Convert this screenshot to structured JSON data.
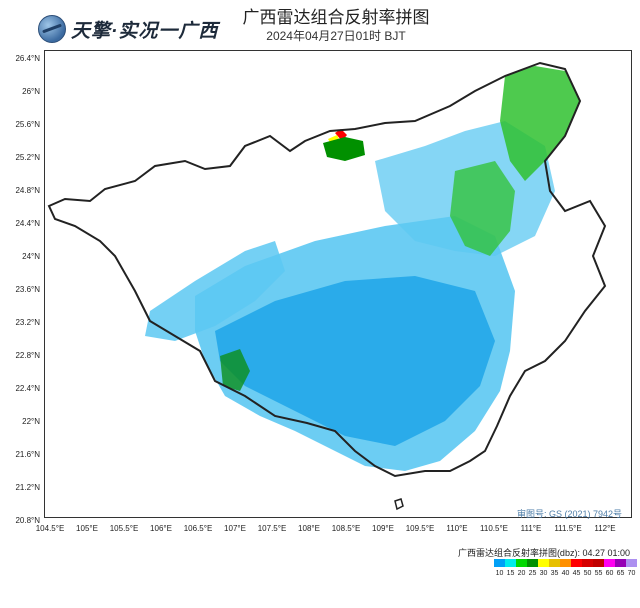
{
  "header": {
    "logo_text": "天擎·实况一广西",
    "title": "广西雷达组合反射率拼图",
    "subtitle": "2024年04月27日01时 BJT"
  },
  "axes": {
    "lat_labels": [
      "26.4°N",
      "26°N",
      "25.6°N",
      "25.2°N",
      "24.8°N",
      "24.4°N",
      "24°N",
      "23.6°N",
      "23.2°N",
      "22.8°N",
      "22.4°N",
      "22°N",
      "21.6°N",
      "21.2°N",
      "20.8°N"
    ],
    "lon_labels": [
      "104.5°E",
      "105°E",
      "105.5°E",
      "106°E",
      "106.5°E",
      "107°E",
      "107.5°E",
      "108°E",
      "108.5°E",
      "109°E",
      "109.5°E",
      "110°E",
      "110.5°E",
      "111°E",
      "111.5°E",
      "112°E"
    ]
  },
  "approval_number": "审图号: GS (2021) 7942号",
  "legend": {
    "title": "广西雷达组合反射率拼图(dbz): 04.27 01:00",
    "values": [
      "10",
      "15",
      "20",
      "25",
      "30",
      "35",
      "40",
      "45",
      "50",
      "55",
      "60",
      "65",
      "70"
    ],
    "colors": [
      "#01a0f6",
      "#00ecec",
      "#00d800",
      "#019000",
      "#ffff00",
      "#e7c000",
      "#ff9000",
      "#ff0000",
      "#d60000",
      "#c00000",
      "#ff00f0",
      "#9600b4",
      "#ad90f0"
    ]
  },
  "colors": {
    "boundary": "#222222",
    "light_echo": "#5cc8f2",
    "medium_echo": "#1ea5e8",
    "green_echo": "#2fc12f",
    "dark_green_echo": "#0d8f1a"
  }
}
